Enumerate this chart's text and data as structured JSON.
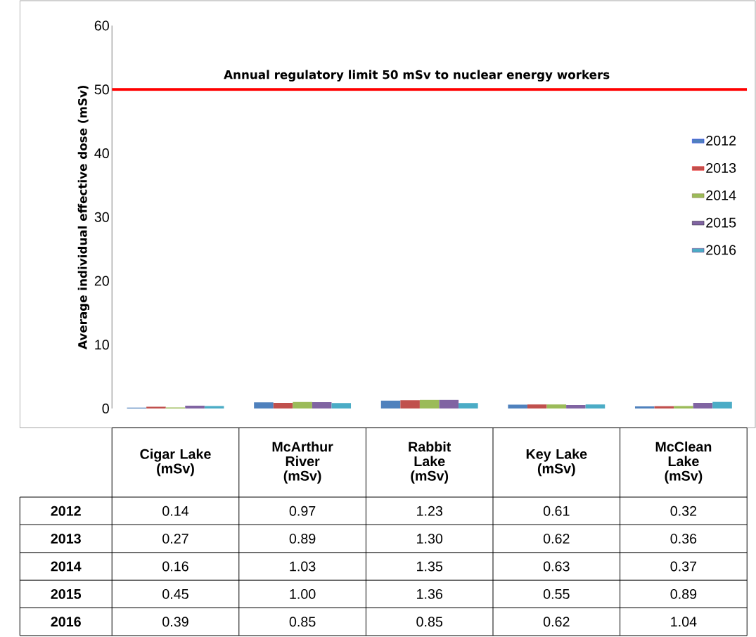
{
  "chart_data": {
    "type": "bar",
    "ylabel": "Average individual effective dose (mSv)",
    "categories": [
      "Cigar Lake (mSv)",
      "McArthur River (mSv)",
      "Rabbit Lake (mSv)",
      "Key Lake (mSv)",
      "McClean Lake (mSv)"
    ],
    "series": [
      {
        "name": "2012",
        "color": "#4f81bd",
        "values": [
          0.14,
          0.97,
          1.23,
          0.61,
          0.32
        ],
        "value_labels": [
          "0.14",
          "0.97",
          "1.23",
          "0.61",
          "0.32"
        ]
      },
      {
        "name": "2013",
        "color": "#c0504d",
        "values": [
          0.27,
          0.89,
          1.3,
          0.62,
          0.36
        ],
        "value_labels": [
          "0.27",
          "0.89",
          "1.30",
          "0.62",
          "0.36"
        ]
      },
      {
        "name": "2014",
        "color": "#9bbb59",
        "values": [
          0.16,
          1.03,
          1.35,
          0.63,
          0.37
        ],
        "value_labels": [
          "0.16",
          "1.03",
          "1.35",
          "0.63",
          "0.37"
        ]
      },
      {
        "name": "2015",
        "color": "#8064a2",
        "values": [
          0.45,
          1.0,
          1.36,
          0.55,
          0.89
        ],
        "value_labels": [
          "0.45",
          "1.00",
          "1.36",
          "0.55",
          "0.89"
        ]
      },
      {
        "name": "2016",
        "color": "#4bacc6",
        "values": [
          0.39,
          0.85,
          0.85,
          0.62,
          1.04
        ],
        "value_labels": [
          "0.39",
          "0.85",
          "0.85",
          "0.62",
          "1.04"
        ]
      }
    ],
    "ylim": [
      0,
      60
    ],
    "yticks": [
      0,
      10,
      20,
      30,
      40,
      50,
      60
    ],
    "grid": false,
    "legend": "right",
    "ref_lines": [
      {
        "axis": "y",
        "value": 50,
        "label": "Annual regulatory limit 50 mSv to nuclear energy workers",
        "color": "#ff0000"
      }
    ]
  }
}
